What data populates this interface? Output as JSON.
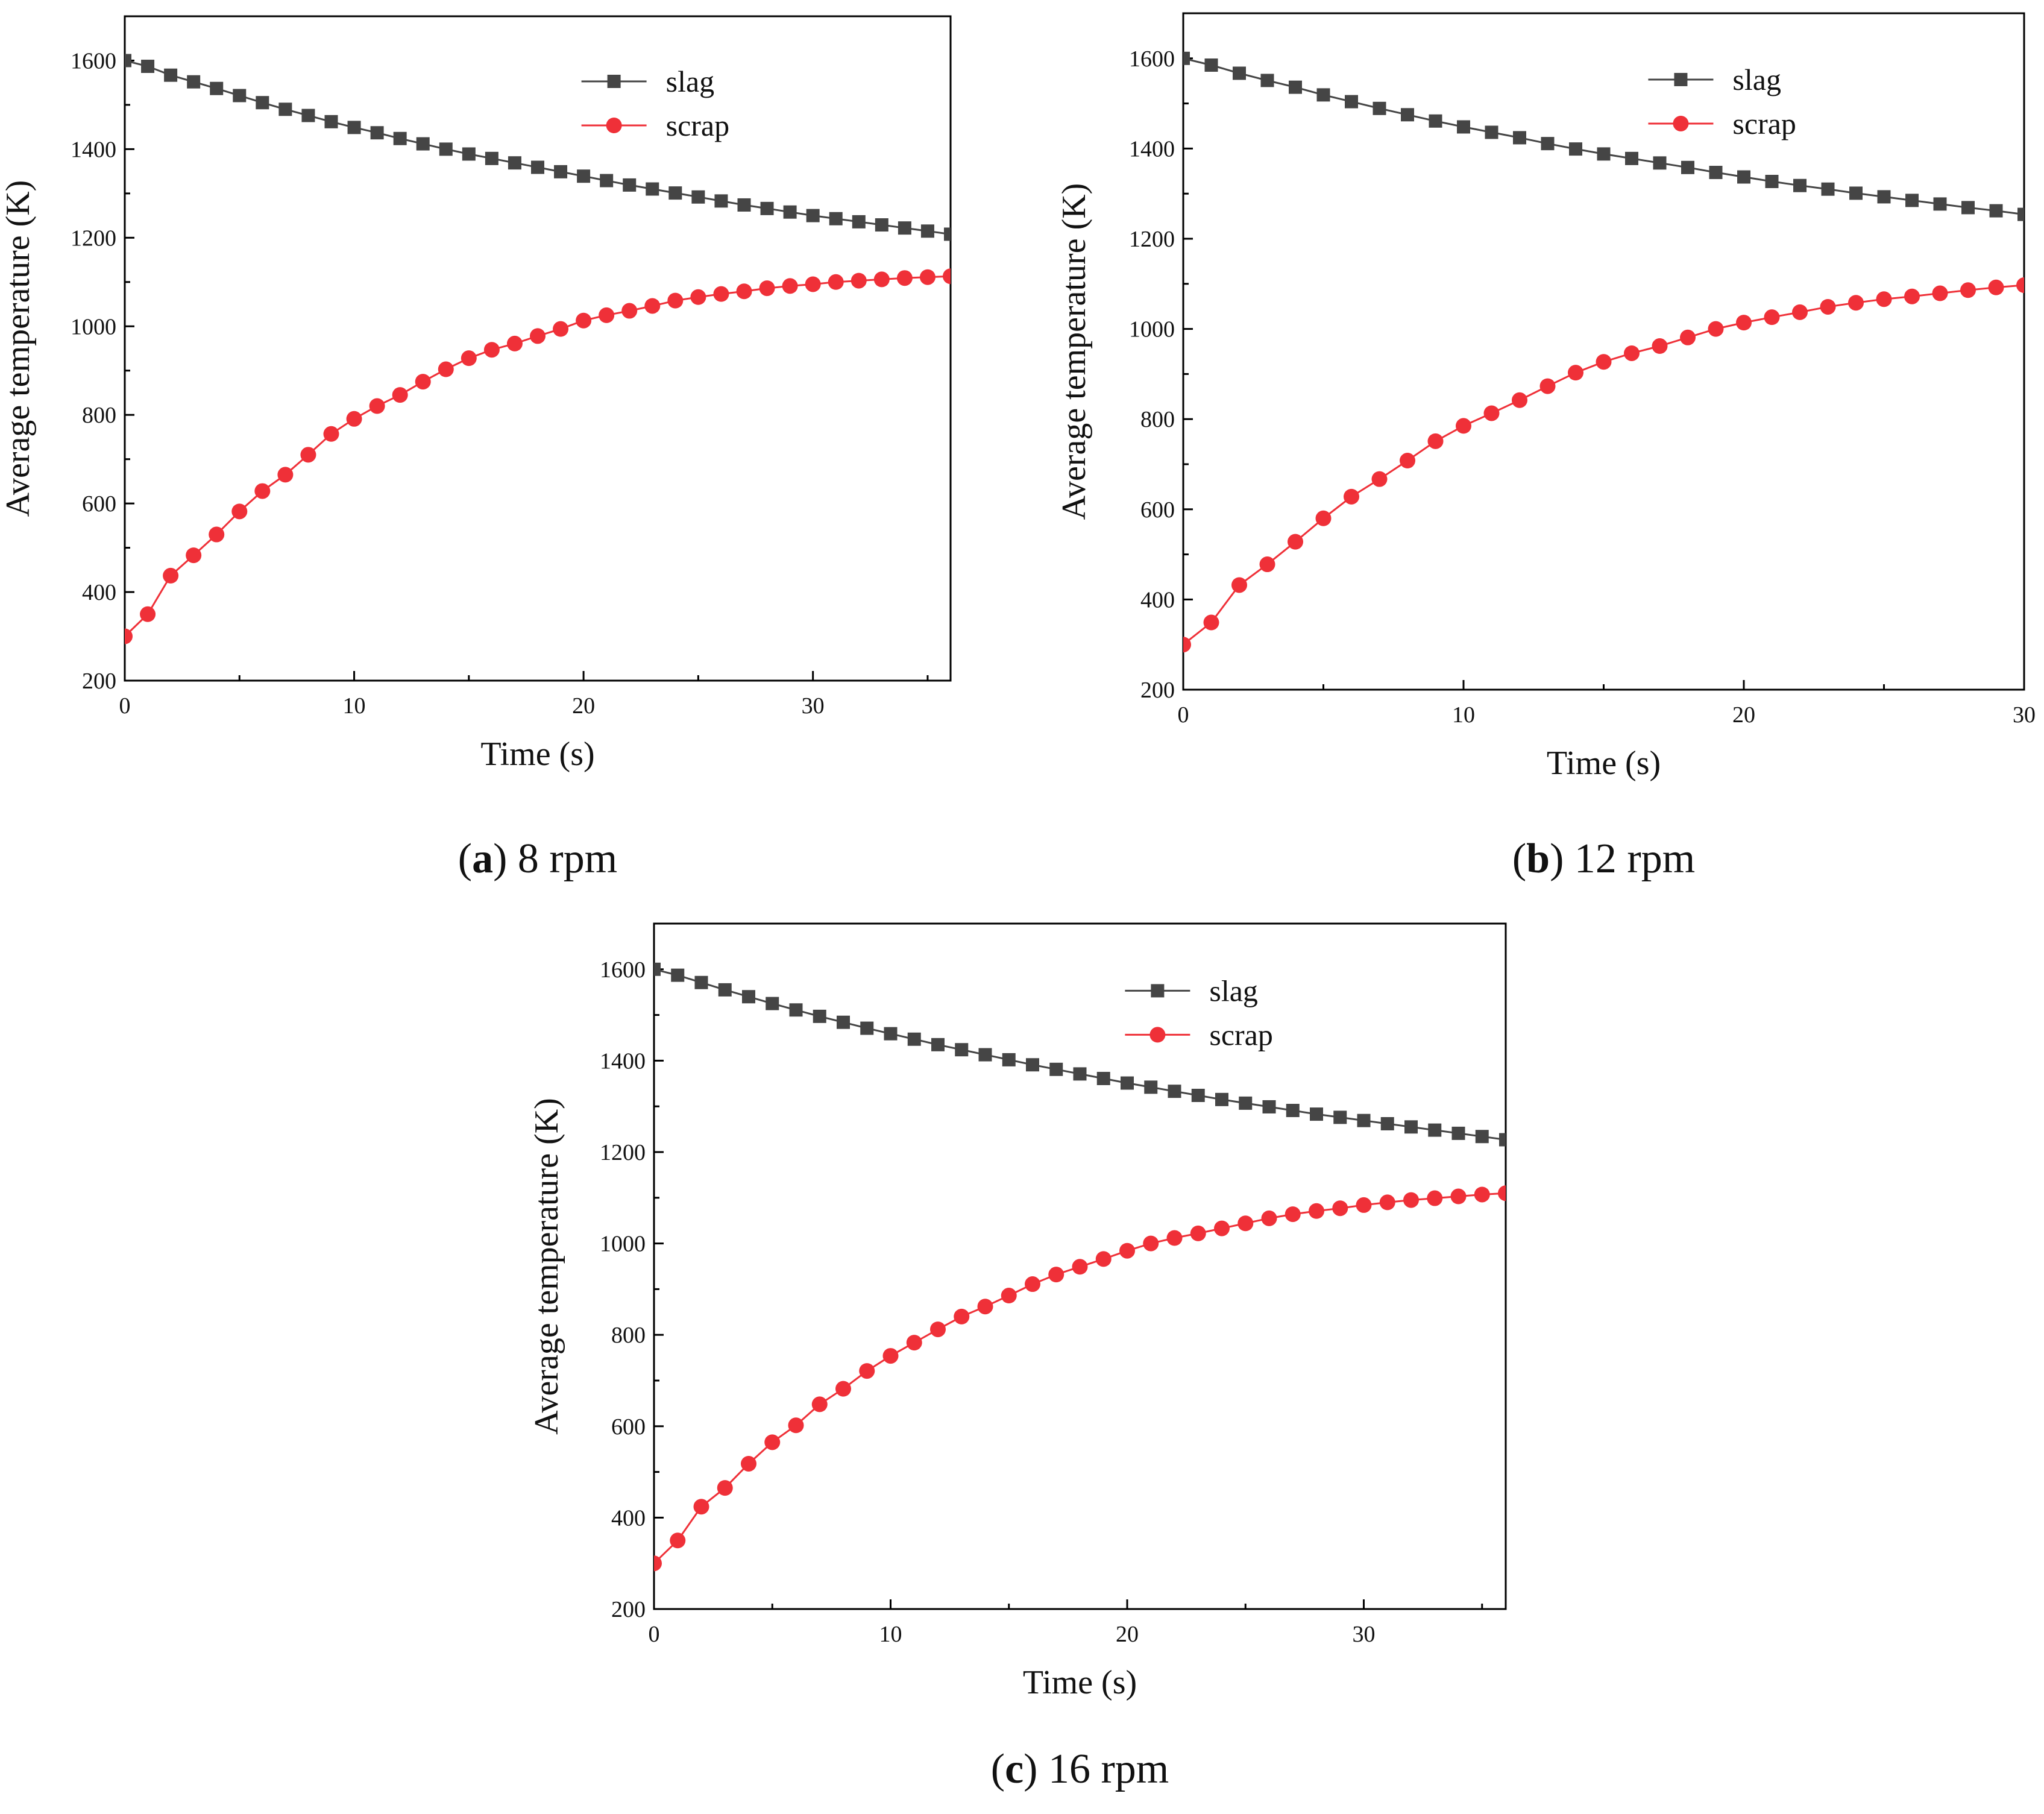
{
  "colors": {
    "slag": "#454545",
    "scrap": "#ef3038",
    "axis": "#000000"
  },
  "chart_data": [
    {
      "type": "line",
      "caption_letter": "a",
      "caption_text": " 8 rpm",
      "xlabel": "Time (s)",
      "ylabel": "Average temperature (K)",
      "xlim": [
        0,
        36
      ],
      "ylim": [
        200,
        1700
      ],
      "xticks": [
        0,
        10,
        20,
        30
      ],
      "yticks": [
        200,
        400,
        600,
        800,
        1000,
        1200,
        1400,
        1600
      ],
      "grid": false,
      "legend": "top-right",
      "series": [
        {
          "name": "slag",
          "color": "#454545",
          "marker": "square",
          "x": [
            0,
            1,
            2,
            3,
            4,
            5,
            6,
            7,
            8,
            9,
            10,
            11,
            12,
            13,
            14,
            15,
            16,
            17,
            18,
            19,
            20,
            21,
            22,
            23,
            24,
            25,
            26,
            27,
            28,
            29,
            30,
            31,
            32,
            33,
            34,
            35,
            36
          ],
          "y": [
            1600,
            1587,
            1567,
            1552,
            1537,
            1521,
            1505,
            1490,
            1476,
            1462,
            1449,
            1437,
            1424,
            1412,
            1400,
            1389,
            1379,
            1369,
            1359,
            1349,
            1339,
            1329,
            1319,
            1310,
            1301,
            1292,
            1283,
            1274,
            1266,
            1258,
            1250,
            1243,
            1236,
            1229,
            1222,
            1215,
            1208
          ]
        },
        {
          "name": "scrap",
          "color": "#ef3038",
          "marker": "circle",
          "x": [
            0,
            1,
            2,
            3,
            4,
            5,
            6,
            7,
            8,
            9,
            10,
            11,
            12,
            13,
            14,
            15,
            16,
            17,
            18,
            19,
            20,
            21,
            22,
            23,
            24,
            25,
            26,
            27,
            28,
            29,
            30,
            31,
            32,
            33,
            34,
            35,
            36
          ],
          "y": [
            300,
            350,
            437,
            483,
            530,
            582,
            628,
            665,
            710,
            757,
            791,
            820,
            845,
            875,
            903,
            928,
            947,
            961,
            978,
            994,
            1013,
            1025,
            1035,
            1046,
            1058,
            1066,
            1073,
            1079,
            1086,
            1091,
            1095,
            1100,
            1103,
            1106,
            1109,
            1111,
            1113
          ]
        }
      ]
    },
    {
      "type": "line",
      "caption_letter": "b",
      "caption_text": " 12 rpm",
      "xlabel": "Time (s)",
      "ylabel": "Average temperature (K)",
      "xlim": [
        0,
        30
      ],
      "ylim": [
        200,
        1700
      ],
      "xticks": [
        0,
        10,
        20,
        30
      ],
      "yticks": [
        200,
        400,
        600,
        800,
        1000,
        1200,
        1400,
        1600
      ],
      "grid": false,
      "legend": "top-right",
      "series": [
        {
          "name": "slag",
          "color": "#454545",
          "marker": "square",
          "x": [
            0,
            1,
            2,
            3,
            4,
            5,
            6,
            7,
            8,
            9,
            10,
            11,
            12,
            13,
            14,
            15,
            16,
            17,
            18,
            19,
            20,
            21,
            22,
            23,
            24,
            25,
            26,
            27,
            28,
            29,
            30
          ],
          "y": [
            1600,
            1585,
            1567,
            1551,
            1536,
            1519,
            1504,
            1489,
            1475,
            1461,
            1448,
            1436,
            1424,
            1411,
            1399,
            1388,
            1378,
            1368,
            1358,
            1347,
            1337,
            1327,
            1318,
            1310,
            1301,
            1293,
            1285,
            1277,
            1269,
            1262,
            1254
          ]
        },
        {
          "name": "scrap",
          "color": "#ef3038",
          "marker": "circle",
          "x": [
            0,
            1,
            2,
            3,
            4,
            5,
            6,
            7,
            8,
            9,
            10,
            11,
            12,
            13,
            14,
            15,
            16,
            17,
            18,
            19,
            20,
            21,
            22,
            23,
            24,
            25,
            26,
            27,
            28,
            29,
            30
          ],
          "y": [
            300,
            349,
            432,
            478,
            528,
            580,
            628,
            667,
            708,
            751,
            785,
            813,
            842,
            873,
            903,
            927,
            946,
            962,
            981,
            1000,
            1014,
            1026,
            1037,
            1049,
            1058,
            1066,
            1072,
            1079,
            1086,
            1092,
            1097
          ]
        }
      ]
    },
    {
      "type": "line",
      "caption_letter": "c",
      "caption_text": " 16 rpm",
      "xlabel": "Time (s)",
      "ylabel": "Average temperature (K)",
      "xlim": [
        0,
        36
      ],
      "ylim": [
        200,
        1700
      ],
      "xticks": [
        0,
        10,
        20,
        30
      ],
      "yticks": [
        200,
        400,
        600,
        800,
        1000,
        1200,
        1400,
        1600
      ],
      "grid": false,
      "legend": "top-right",
      "series": [
        {
          "name": "slag",
          "color": "#454545",
          "marker": "square",
          "x": [
            0,
            1,
            2,
            3,
            4,
            5,
            6,
            7,
            8,
            9,
            10,
            11,
            12,
            13,
            14,
            15,
            16,
            17,
            18,
            19,
            20,
            21,
            22,
            23,
            24,
            25,
            26,
            27,
            28,
            29,
            30,
            31,
            32,
            33,
            34,
            35,
            36
          ],
          "y": [
            1600,
            1587,
            1571,
            1555,
            1540,
            1525,
            1511,
            1497,
            1484,
            1471,
            1459,
            1447,
            1435,
            1424,
            1413,
            1402,
            1391,
            1381,
            1371,
            1361,
            1351,
            1342,
            1333,
            1324,
            1315,
            1307,
            1299,
            1291,
            1283,
            1276,
            1269,
            1262,
            1255,
            1248,
            1241,
            1234,
            1227
          ]
        },
        {
          "name": "scrap",
          "color": "#ef3038",
          "marker": "circle",
          "x": [
            0,
            1,
            2,
            3,
            4,
            5,
            6,
            7,
            8,
            9,
            10,
            11,
            12,
            13,
            14,
            15,
            16,
            17,
            18,
            19,
            20,
            21,
            22,
            23,
            24,
            25,
            26,
            27,
            28,
            29,
            30,
            31,
            32,
            33,
            34,
            35,
            36
          ],
          "y": [
            300,
            350,
            424,
            465,
            518,
            565,
            602,
            648,
            682,
            721,
            754,
            783,
            812,
            840,
            862,
            886,
            911,
            932,
            949,
            966,
            984,
            1000,
            1012,
            1022,
            1033,
            1044,
            1055,
            1064,
            1071,
            1077,
            1084,
            1090,
            1095,
            1099,
            1103,
            1107,
            1110
          ]
        }
      ]
    }
  ]
}
